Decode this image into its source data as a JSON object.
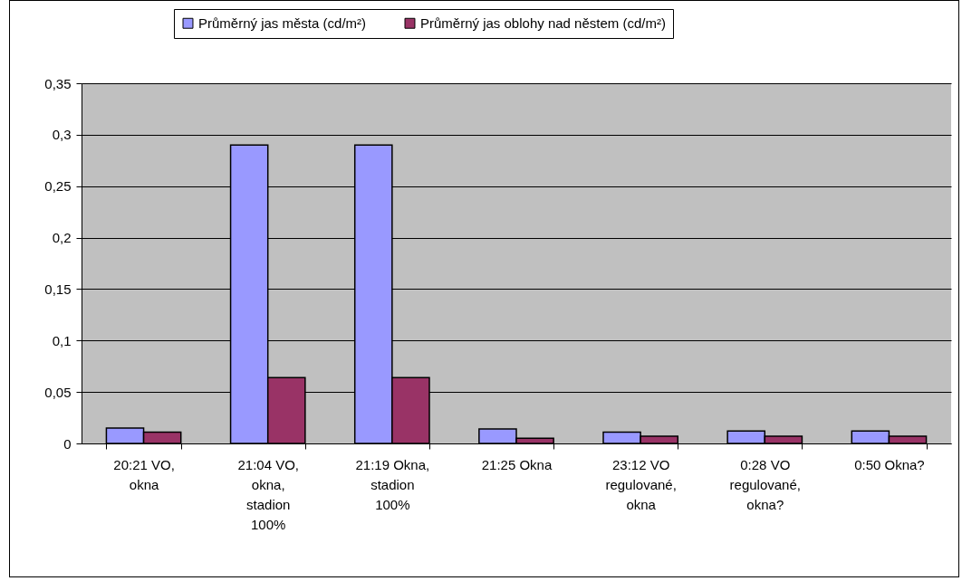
{
  "chart_data": {
    "type": "bar",
    "categories": [
      "20:21 VO, okna",
      "21:04 VO, okna, stadion 100%",
      "21:19 Okna, stadion 100%",
      "21:25 Okna",
      "23:12 VO regulované, okna",
      "0:28 VO regulované, okna?",
      "0:50 Okna?"
    ],
    "series": [
      {
        "name": "Průměrný jas města (cd/m²)",
        "color": "#9999ff",
        "values": [
          0.015,
          0.29,
          0.29,
          0.014,
          0.011,
          0.012,
          0.012
        ]
      },
      {
        "name": "Průměrný jas oblohy nad něstem (cd/m²)",
        "color": "#993366",
        "values": [
          0.011,
          0.064,
          0.064,
          0.005,
          0.007,
          0.007,
          0.007
        ]
      }
    ],
    "ylim": [
      0,
      0.35
    ],
    "yticks": [
      0,
      {
        "value": 0.05,
        "label": "0,05"
      },
      {
        "value": 0.1,
        "label": "0,1"
      },
      {
        "value": 0.15,
        "label": "0,15"
      },
      {
        "value": 0.2,
        "label": "0,2"
      },
      {
        "value": 0.25,
        "label": "0,25"
      },
      {
        "value": 0.3,
        "label": "0,3"
      },
      {
        "value": 0.35,
        "label": "0,35"
      }
    ],
    "grid": "y",
    "legend": "top"
  }
}
